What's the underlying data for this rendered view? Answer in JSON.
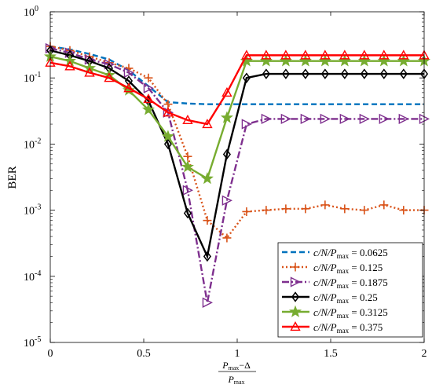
{
  "chart_data": {
    "type": "line",
    "yscale": "log",
    "xlim": [
      0,
      2
    ],
    "ylim_exp": [
      -5,
      0
    ],
    "xticks": [
      0,
      0.5,
      1,
      1.5,
      2
    ],
    "xtick_labels": [
      "0",
      "0.5",
      "1",
      "1.5",
      "2"
    ],
    "ytick_exponents": [
      -5,
      -4,
      -3,
      -2,
      -1,
      0
    ],
    "ytick_base": "10",
    "ylabel": "BER",
    "xlabel": {
      "num_sym": "P",
      "num_sub": "max",
      "num_rest": "−Δ",
      "den_sym": "P",
      "den_sub": "max"
    },
    "grid": false,
    "legend_position": "bottom-right",
    "x": [
      0,
      0.105,
      0.21,
      0.315,
      0.42,
      0.525,
      0.63,
      0.735,
      0.84,
      0.945,
      1.05,
      1.155,
      1.26,
      1.365,
      1.47,
      1.575,
      1.68,
      1.785,
      1.89,
      2.0
    ],
    "series": [
      {
        "legend_value": "0.0625",
        "color": "#0072BD",
        "dash": "7,4",
        "marker": "none",
        "values": [
          0.3,
          0.27,
          0.23,
          0.19,
          0.13,
          0.075,
          0.043,
          0.041,
          0.04,
          0.04,
          0.04,
          0.04,
          0.04,
          0.04,
          0.04,
          0.04,
          0.04,
          0.04,
          0.04,
          0.04
        ]
      },
      {
        "legend_value": "0.125",
        "color": "#D95319",
        "dash": "2,3",
        "marker": "plus",
        "values": [
          0.3,
          0.26,
          0.21,
          0.17,
          0.14,
          0.1,
          0.04,
          0.0065,
          0.0007,
          0.00038,
          0.00095,
          0.001,
          0.00105,
          0.00105,
          0.0012,
          0.00105,
          0.001,
          0.0012,
          0.001,
          0.001
        ]
      },
      {
        "legend_value": "0.1875",
        "color": "#7E2F8E",
        "dash": "9,3,2,3",
        "marker": "triangle-right",
        "values": [
          0.28,
          0.24,
          0.19,
          0.16,
          0.12,
          0.07,
          0.03,
          0.002,
          4e-05,
          0.0014,
          0.02,
          0.024,
          0.024,
          0.024,
          0.024,
          0.024,
          0.024,
          0.024,
          0.024,
          0.024
        ]
      },
      {
        "legend_value": "0.25",
        "color": "#000000",
        "dash": "none",
        "marker": "diamond",
        "values": [
          0.26,
          0.22,
          0.18,
          0.14,
          0.09,
          0.045,
          0.01,
          0.0009,
          0.0002,
          0.007,
          0.1,
          0.115,
          0.115,
          0.115,
          0.115,
          0.115,
          0.115,
          0.115,
          0.115,
          0.115
        ]
      },
      {
        "legend_value": "0.3125",
        "color": "#77AC30",
        "dash": "none",
        "marker": "star",
        "values": [
          0.21,
          0.18,
          0.14,
          0.11,
          0.065,
          0.033,
          0.013,
          0.0045,
          0.003,
          0.025,
          0.18,
          0.18,
          0.18,
          0.18,
          0.18,
          0.18,
          0.18,
          0.18,
          0.18,
          0.18
        ]
      },
      {
        "legend_value": "0.375",
        "color": "#FF0000",
        "dash": "none",
        "marker": "triangle-up",
        "values": [
          0.17,
          0.15,
          0.12,
          0.1,
          0.07,
          0.048,
          0.03,
          0.023,
          0.02,
          0.06,
          0.22,
          0.22,
          0.22,
          0.22,
          0.22,
          0.22,
          0.22,
          0.22,
          0.22,
          0.22
        ]
      }
    ]
  },
  "legend_label": {
    "prefix": "c/N/",
    "sym": "P",
    "sub": "max",
    "eq": " = "
  }
}
